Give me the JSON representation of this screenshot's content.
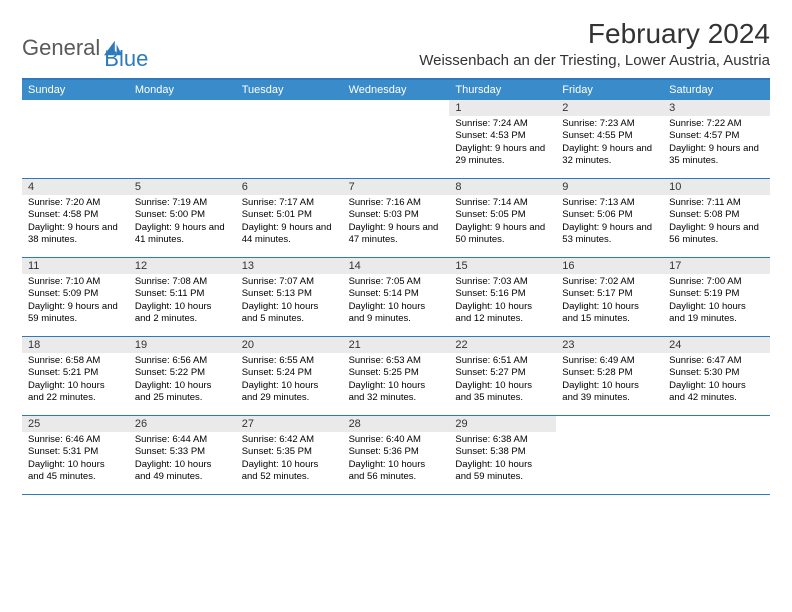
{
  "logo": {
    "text1": "General",
    "text2": "Blue"
  },
  "title": "February 2024",
  "location": "Weissenbach an der Triesting, Lower Austria, Austria",
  "colors": {
    "header_bg": "#3a8bc9",
    "border": "#2d7bbd",
    "daynum_bg": "#eaeaea",
    "text_light": "#ffffff",
    "text_dark": "#000000"
  },
  "weekdays": [
    "Sunday",
    "Monday",
    "Tuesday",
    "Wednesday",
    "Thursday",
    "Friday",
    "Saturday"
  ],
  "weeks": [
    [
      {
        "n": "",
        "sunrise": "",
        "sunset": "",
        "daylight": ""
      },
      {
        "n": "",
        "sunrise": "",
        "sunset": "",
        "daylight": ""
      },
      {
        "n": "",
        "sunrise": "",
        "sunset": "",
        "daylight": ""
      },
      {
        "n": "",
        "sunrise": "",
        "sunset": "",
        "daylight": ""
      },
      {
        "n": "1",
        "sunrise": "Sunrise: 7:24 AM",
        "sunset": "Sunset: 4:53 PM",
        "daylight": "Daylight: 9 hours and 29 minutes."
      },
      {
        "n": "2",
        "sunrise": "Sunrise: 7:23 AM",
        "sunset": "Sunset: 4:55 PM",
        "daylight": "Daylight: 9 hours and 32 minutes."
      },
      {
        "n": "3",
        "sunrise": "Sunrise: 7:22 AM",
        "sunset": "Sunset: 4:57 PM",
        "daylight": "Daylight: 9 hours and 35 minutes."
      }
    ],
    [
      {
        "n": "4",
        "sunrise": "Sunrise: 7:20 AM",
        "sunset": "Sunset: 4:58 PM",
        "daylight": "Daylight: 9 hours and 38 minutes."
      },
      {
        "n": "5",
        "sunrise": "Sunrise: 7:19 AM",
        "sunset": "Sunset: 5:00 PM",
        "daylight": "Daylight: 9 hours and 41 minutes."
      },
      {
        "n": "6",
        "sunrise": "Sunrise: 7:17 AM",
        "sunset": "Sunset: 5:01 PM",
        "daylight": "Daylight: 9 hours and 44 minutes."
      },
      {
        "n": "7",
        "sunrise": "Sunrise: 7:16 AM",
        "sunset": "Sunset: 5:03 PM",
        "daylight": "Daylight: 9 hours and 47 minutes."
      },
      {
        "n": "8",
        "sunrise": "Sunrise: 7:14 AM",
        "sunset": "Sunset: 5:05 PM",
        "daylight": "Daylight: 9 hours and 50 minutes."
      },
      {
        "n": "9",
        "sunrise": "Sunrise: 7:13 AM",
        "sunset": "Sunset: 5:06 PM",
        "daylight": "Daylight: 9 hours and 53 minutes."
      },
      {
        "n": "10",
        "sunrise": "Sunrise: 7:11 AM",
        "sunset": "Sunset: 5:08 PM",
        "daylight": "Daylight: 9 hours and 56 minutes."
      }
    ],
    [
      {
        "n": "11",
        "sunrise": "Sunrise: 7:10 AM",
        "sunset": "Sunset: 5:09 PM",
        "daylight": "Daylight: 9 hours and 59 minutes."
      },
      {
        "n": "12",
        "sunrise": "Sunrise: 7:08 AM",
        "sunset": "Sunset: 5:11 PM",
        "daylight": "Daylight: 10 hours and 2 minutes."
      },
      {
        "n": "13",
        "sunrise": "Sunrise: 7:07 AM",
        "sunset": "Sunset: 5:13 PM",
        "daylight": "Daylight: 10 hours and 5 minutes."
      },
      {
        "n": "14",
        "sunrise": "Sunrise: 7:05 AM",
        "sunset": "Sunset: 5:14 PM",
        "daylight": "Daylight: 10 hours and 9 minutes."
      },
      {
        "n": "15",
        "sunrise": "Sunrise: 7:03 AM",
        "sunset": "Sunset: 5:16 PM",
        "daylight": "Daylight: 10 hours and 12 minutes."
      },
      {
        "n": "16",
        "sunrise": "Sunrise: 7:02 AM",
        "sunset": "Sunset: 5:17 PM",
        "daylight": "Daylight: 10 hours and 15 minutes."
      },
      {
        "n": "17",
        "sunrise": "Sunrise: 7:00 AM",
        "sunset": "Sunset: 5:19 PM",
        "daylight": "Daylight: 10 hours and 19 minutes."
      }
    ],
    [
      {
        "n": "18",
        "sunrise": "Sunrise: 6:58 AM",
        "sunset": "Sunset: 5:21 PM",
        "daylight": "Daylight: 10 hours and 22 minutes."
      },
      {
        "n": "19",
        "sunrise": "Sunrise: 6:56 AM",
        "sunset": "Sunset: 5:22 PM",
        "daylight": "Daylight: 10 hours and 25 minutes."
      },
      {
        "n": "20",
        "sunrise": "Sunrise: 6:55 AM",
        "sunset": "Sunset: 5:24 PM",
        "daylight": "Daylight: 10 hours and 29 minutes."
      },
      {
        "n": "21",
        "sunrise": "Sunrise: 6:53 AM",
        "sunset": "Sunset: 5:25 PM",
        "daylight": "Daylight: 10 hours and 32 minutes."
      },
      {
        "n": "22",
        "sunrise": "Sunrise: 6:51 AM",
        "sunset": "Sunset: 5:27 PM",
        "daylight": "Daylight: 10 hours and 35 minutes."
      },
      {
        "n": "23",
        "sunrise": "Sunrise: 6:49 AM",
        "sunset": "Sunset: 5:28 PM",
        "daylight": "Daylight: 10 hours and 39 minutes."
      },
      {
        "n": "24",
        "sunrise": "Sunrise: 6:47 AM",
        "sunset": "Sunset: 5:30 PM",
        "daylight": "Daylight: 10 hours and 42 minutes."
      }
    ],
    [
      {
        "n": "25",
        "sunrise": "Sunrise: 6:46 AM",
        "sunset": "Sunset: 5:31 PM",
        "daylight": "Daylight: 10 hours and 45 minutes."
      },
      {
        "n": "26",
        "sunrise": "Sunrise: 6:44 AM",
        "sunset": "Sunset: 5:33 PM",
        "daylight": "Daylight: 10 hours and 49 minutes."
      },
      {
        "n": "27",
        "sunrise": "Sunrise: 6:42 AM",
        "sunset": "Sunset: 5:35 PM",
        "daylight": "Daylight: 10 hours and 52 minutes."
      },
      {
        "n": "28",
        "sunrise": "Sunrise: 6:40 AM",
        "sunset": "Sunset: 5:36 PM",
        "daylight": "Daylight: 10 hours and 56 minutes."
      },
      {
        "n": "29",
        "sunrise": "Sunrise: 6:38 AM",
        "sunset": "Sunset: 5:38 PM",
        "daylight": "Daylight: 10 hours and 59 minutes."
      },
      {
        "n": "",
        "sunrise": "",
        "sunset": "",
        "daylight": ""
      },
      {
        "n": "",
        "sunrise": "",
        "sunset": "",
        "daylight": ""
      }
    ]
  ]
}
